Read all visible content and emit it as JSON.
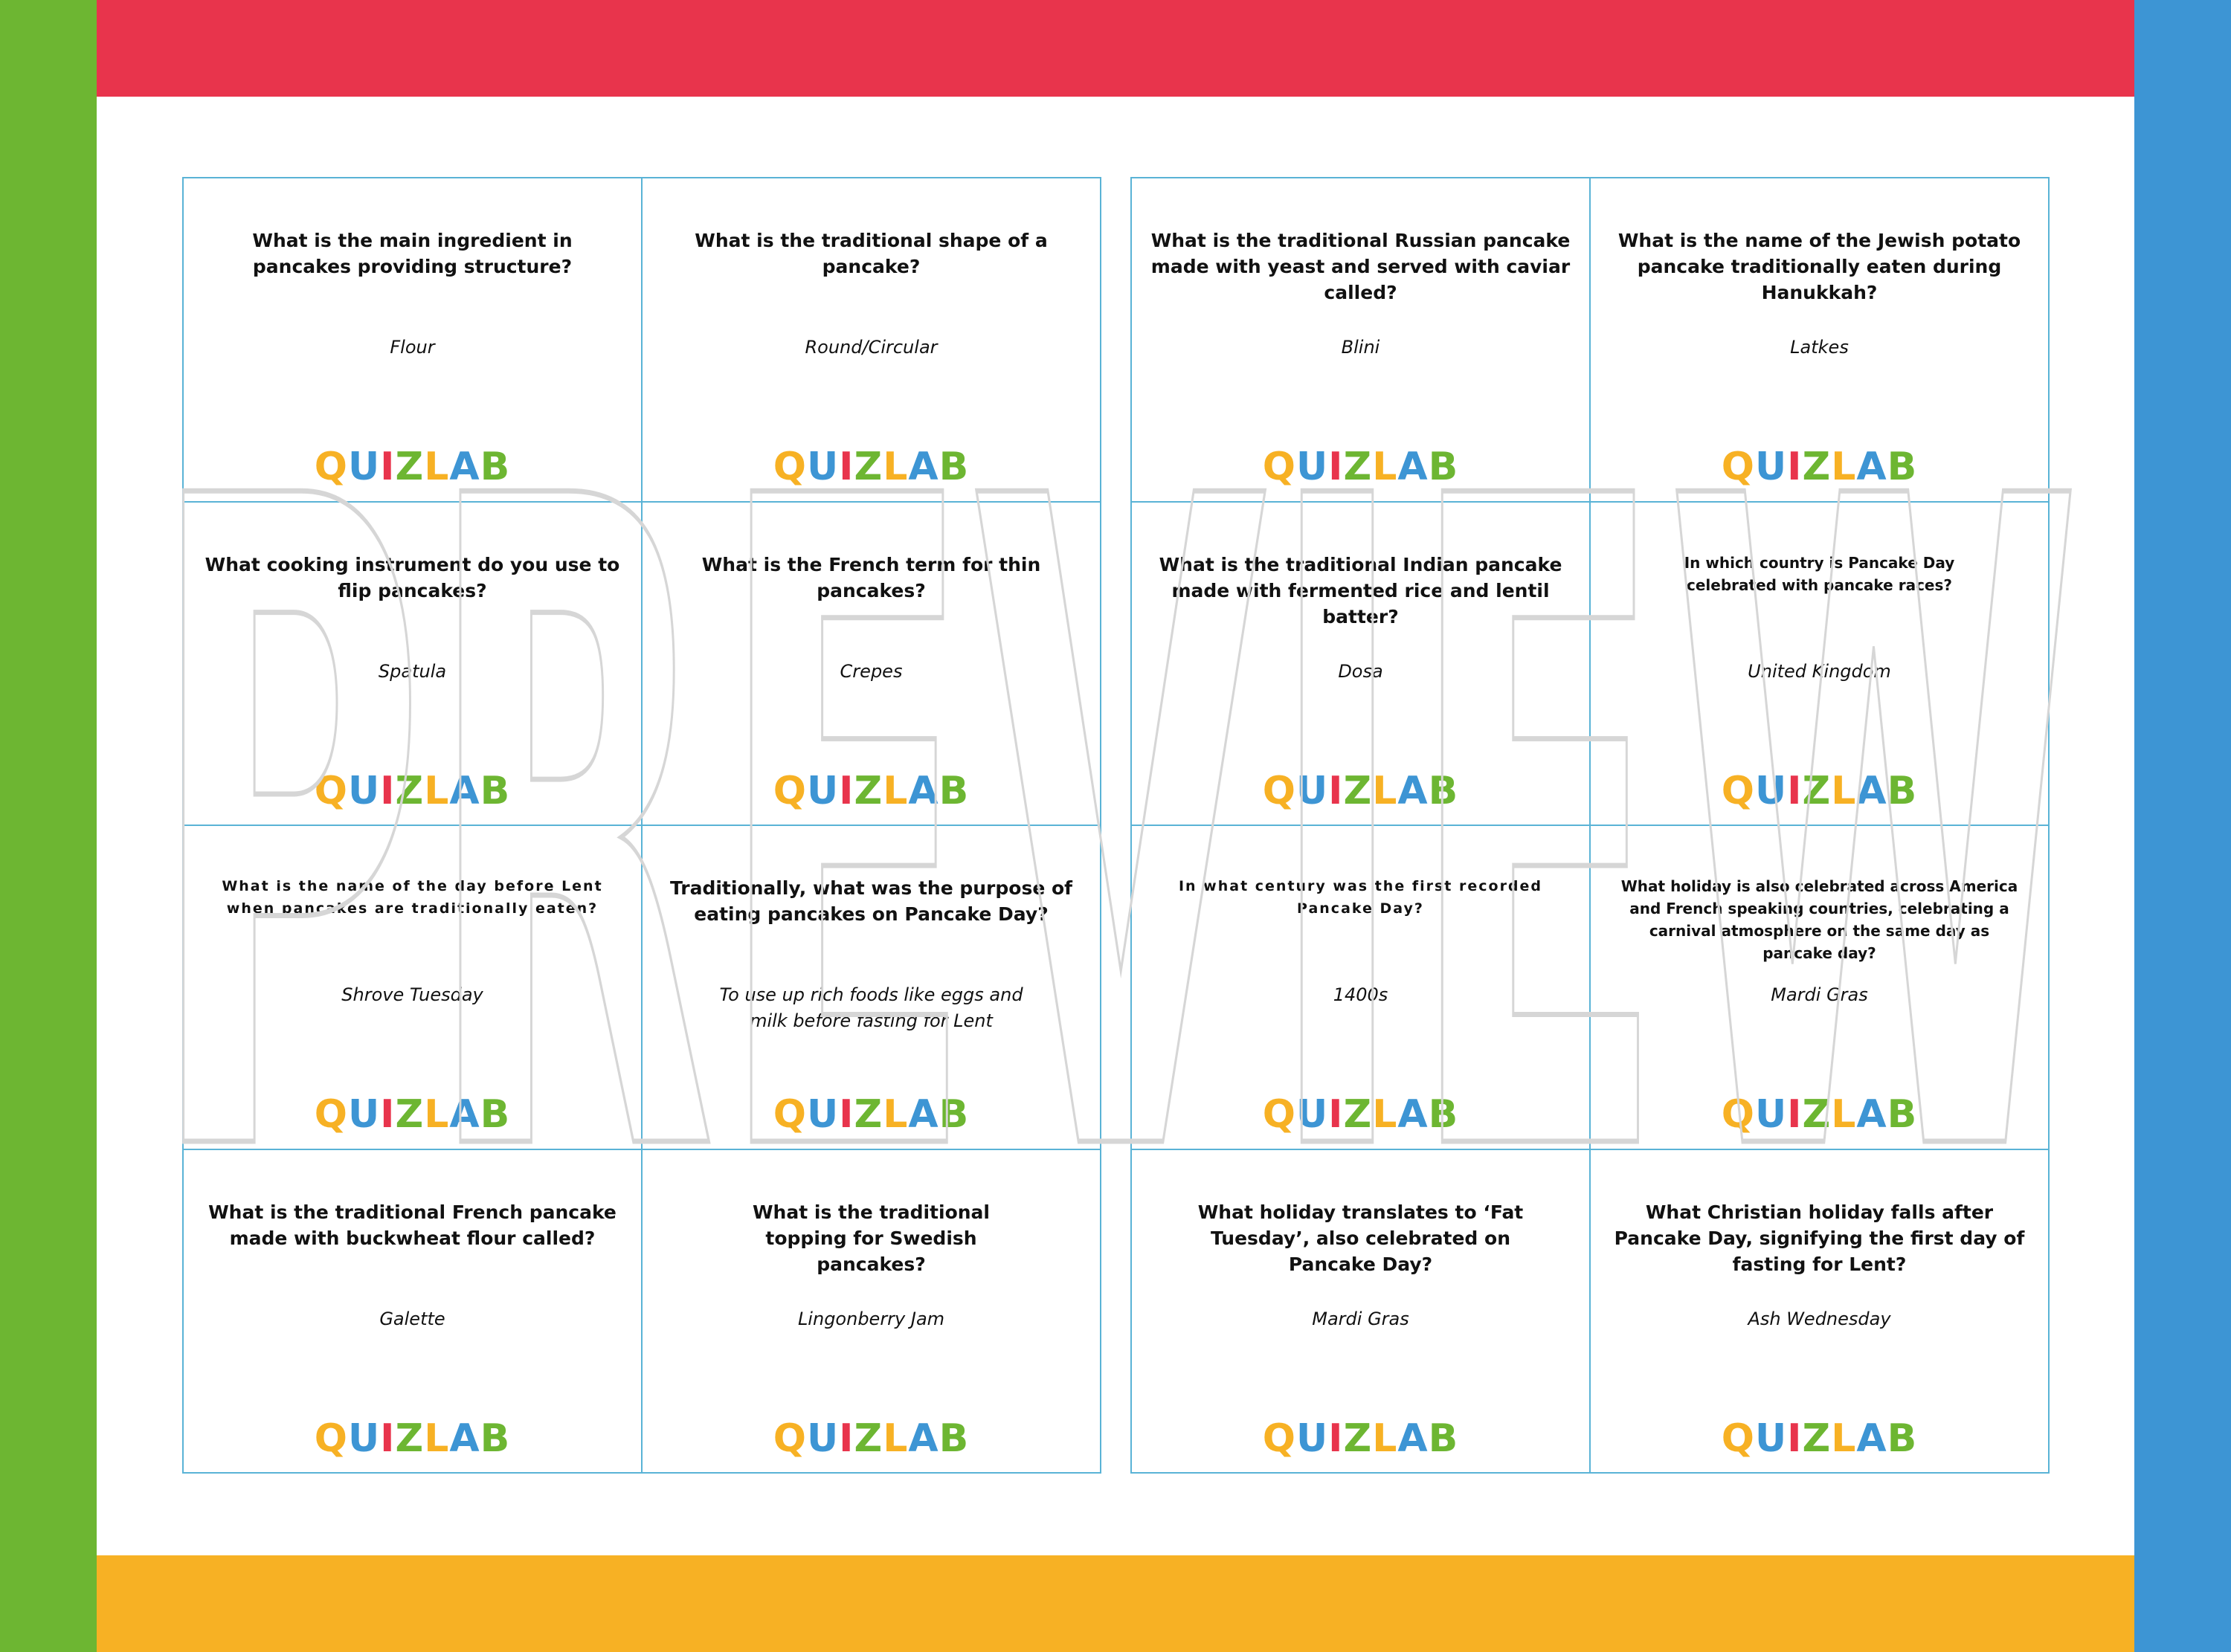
{
  "colors": {
    "top_bar": "#e8344c",
    "bottom_bar": "#f7b124",
    "left_bar": "#6db632",
    "right_bar": "#3d95d4",
    "card_border": "#5ab3d6",
    "logo_letters": [
      "#f7b124",
      "#3d95d4",
      "#e8344c",
      "#6db632",
      "#f7b124",
      "#3d95d4",
      "#6db632"
    ]
  },
  "logo_text": [
    "Q",
    "U",
    "I",
    "Z",
    "L",
    "A",
    "B"
  ],
  "watermark": "PREVIEW",
  "sheets": [
    {
      "cards": [
        {
          "question": "What is the main ingredient in pancakes providing structure?",
          "answer": "Flour"
        },
        {
          "question": "What is the traditional shape of a pancake?",
          "answer": "Round/Circular"
        },
        {
          "question": "What cooking instrument do you use to flip pancakes?",
          "answer": "Spatula"
        },
        {
          "question": "What is the French term for thin pancakes?",
          "answer": "Crepes"
        },
        {
          "question": "What is the name of the day before Lent when pancakes are traditionally eaten?",
          "answer": "Shrove Tuesday"
        },
        {
          "question": "Traditionally, what was the purpose of eating pancakes on Pancake Day?",
          "answer": "To use up rich foods like eggs and milk before fasting for Lent"
        },
        {
          "question": "What is the traditional French pancake made with buckwheat flour called?",
          "answer": "Galette"
        },
        {
          "question": "What is the traditional topping for Swedish pancakes?",
          "answer": "Lingonberry Jam"
        }
      ]
    },
    {
      "cards": [
        {
          "question": "What is the traditional Russian pancake made with yeast and served with caviar called?",
          "answer": "Blini"
        },
        {
          "question": "What is the name of the Jewish potato pancake traditionally eaten during Hanukkah?",
          "answer": "Latkes"
        },
        {
          "question": "What is the traditional Indian pancake made with fermented rice and lentil batter?",
          "answer": "Dosa"
        },
        {
          "question": "In which country is Pancake Day celebrated with pancake races?",
          "answer": "United Kingdom"
        },
        {
          "question": "In what century was the first recorded Pancake Day?",
          "answer": "1400s"
        },
        {
          "question": "What holiday is also celebrated across America and French speaking countries, celebrating a carnival atmosphere on the same day as pancake day?",
          "answer": "Mardi Gras"
        },
        {
          "question": "What holiday translates to ‘Fat Tuesday’, also celebrated on Pancake Day?",
          "answer": "Mardi Gras"
        },
        {
          "question": "What Christian holiday falls after Pancake Day, signifying the first day of fasting for Lent?",
          "answer": "Ash Wednesday"
        }
      ]
    }
  ]
}
